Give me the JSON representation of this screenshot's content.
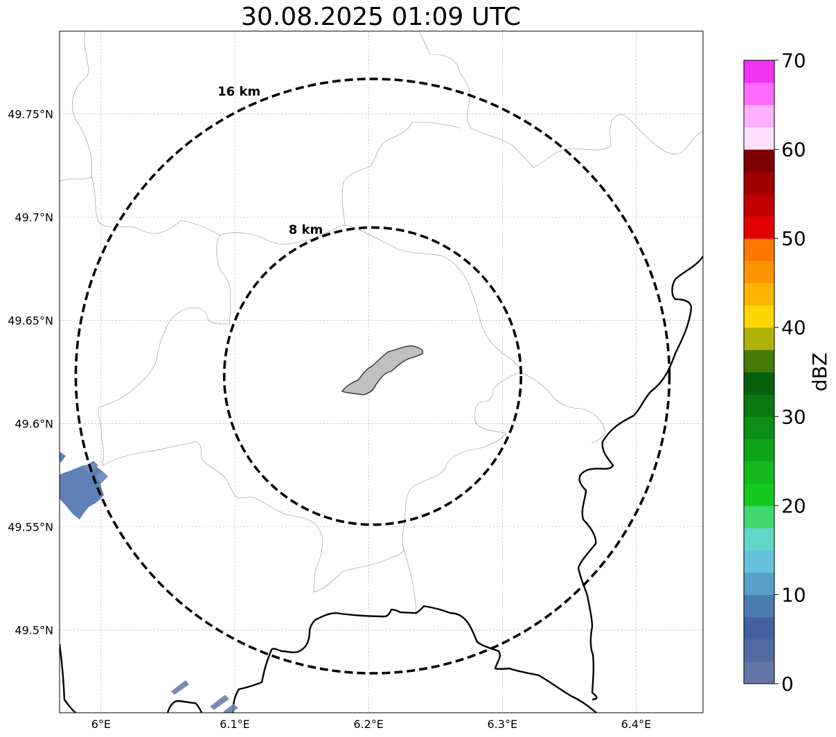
{
  "title": "30.08.2025 01:09 UTC",
  "map": {
    "lat_ticks": [
      {
        "value": 49.75,
        "label": "49.75°N"
      },
      {
        "value": 49.7,
        "label": "49.7°N"
      },
      {
        "value": 49.65,
        "label": "49.65°N"
      },
      {
        "value": 49.6,
        "label": "49.6°N"
      },
      {
        "value": 49.55,
        "label": "49.55°N"
      },
      {
        "value": 49.5,
        "label": "49.5°N"
      }
    ],
    "lon_ticks": [
      {
        "value": 6.0,
        "label": "6°E"
      },
      {
        "value": 6.1,
        "label": "6.1°E"
      },
      {
        "value": 6.2,
        "label": "6.2°E"
      },
      {
        "value": 6.3,
        "label": "6.3°E"
      },
      {
        "value": 6.4,
        "label": "6.4°E"
      }
    ],
    "lon_range": [
      5.969,
      6.45
    ],
    "lat_range": [
      49.46,
      49.79
    ],
    "grid": true,
    "center": {
      "lon": 6.203,
      "lat": 49.623
    },
    "rings": [
      {
        "label": "8 km",
        "radius_km": 8
      },
      {
        "label": "16 km",
        "radius_km": 16
      }
    ]
  },
  "colorbar": {
    "label": "dBZ",
    "min": 0,
    "max": 70,
    "step": 2.5,
    "ticks": [
      "0",
      "10",
      "20",
      "30",
      "40",
      "50",
      "60",
      "70"
    ],
    "colors": [
      "#6477a7",
      "#536ba3",
      "#4560a2",
      "#4a7cb2",
      "#57a0c8",
      "#66c2dc",
      "#61d6c6",
      "#3ed86e",
      "#14c91c",
      "#12b81d",
      "#0ea418",
      "#0b8f14",
      "#097811",
      "#075f0d",
      "#467a08",
      "#aeb206",
      "#fdd503",
      "#fdb402",
      "#fe9402",
      "#fe7801",
      "#e30000",
      "#c10000",
      "#9f0000",
      "#7c0000",
      "#ffe0ff",
      "#ffb1ff",
      "#ff6cff",
      "#f033f0"
    ]
  },
  "colors": {
    "radar_echo": "#4e73ad",
    "city_fill": "#c0c0c0",
    "ring_stroke": "#000000"
  }
}
